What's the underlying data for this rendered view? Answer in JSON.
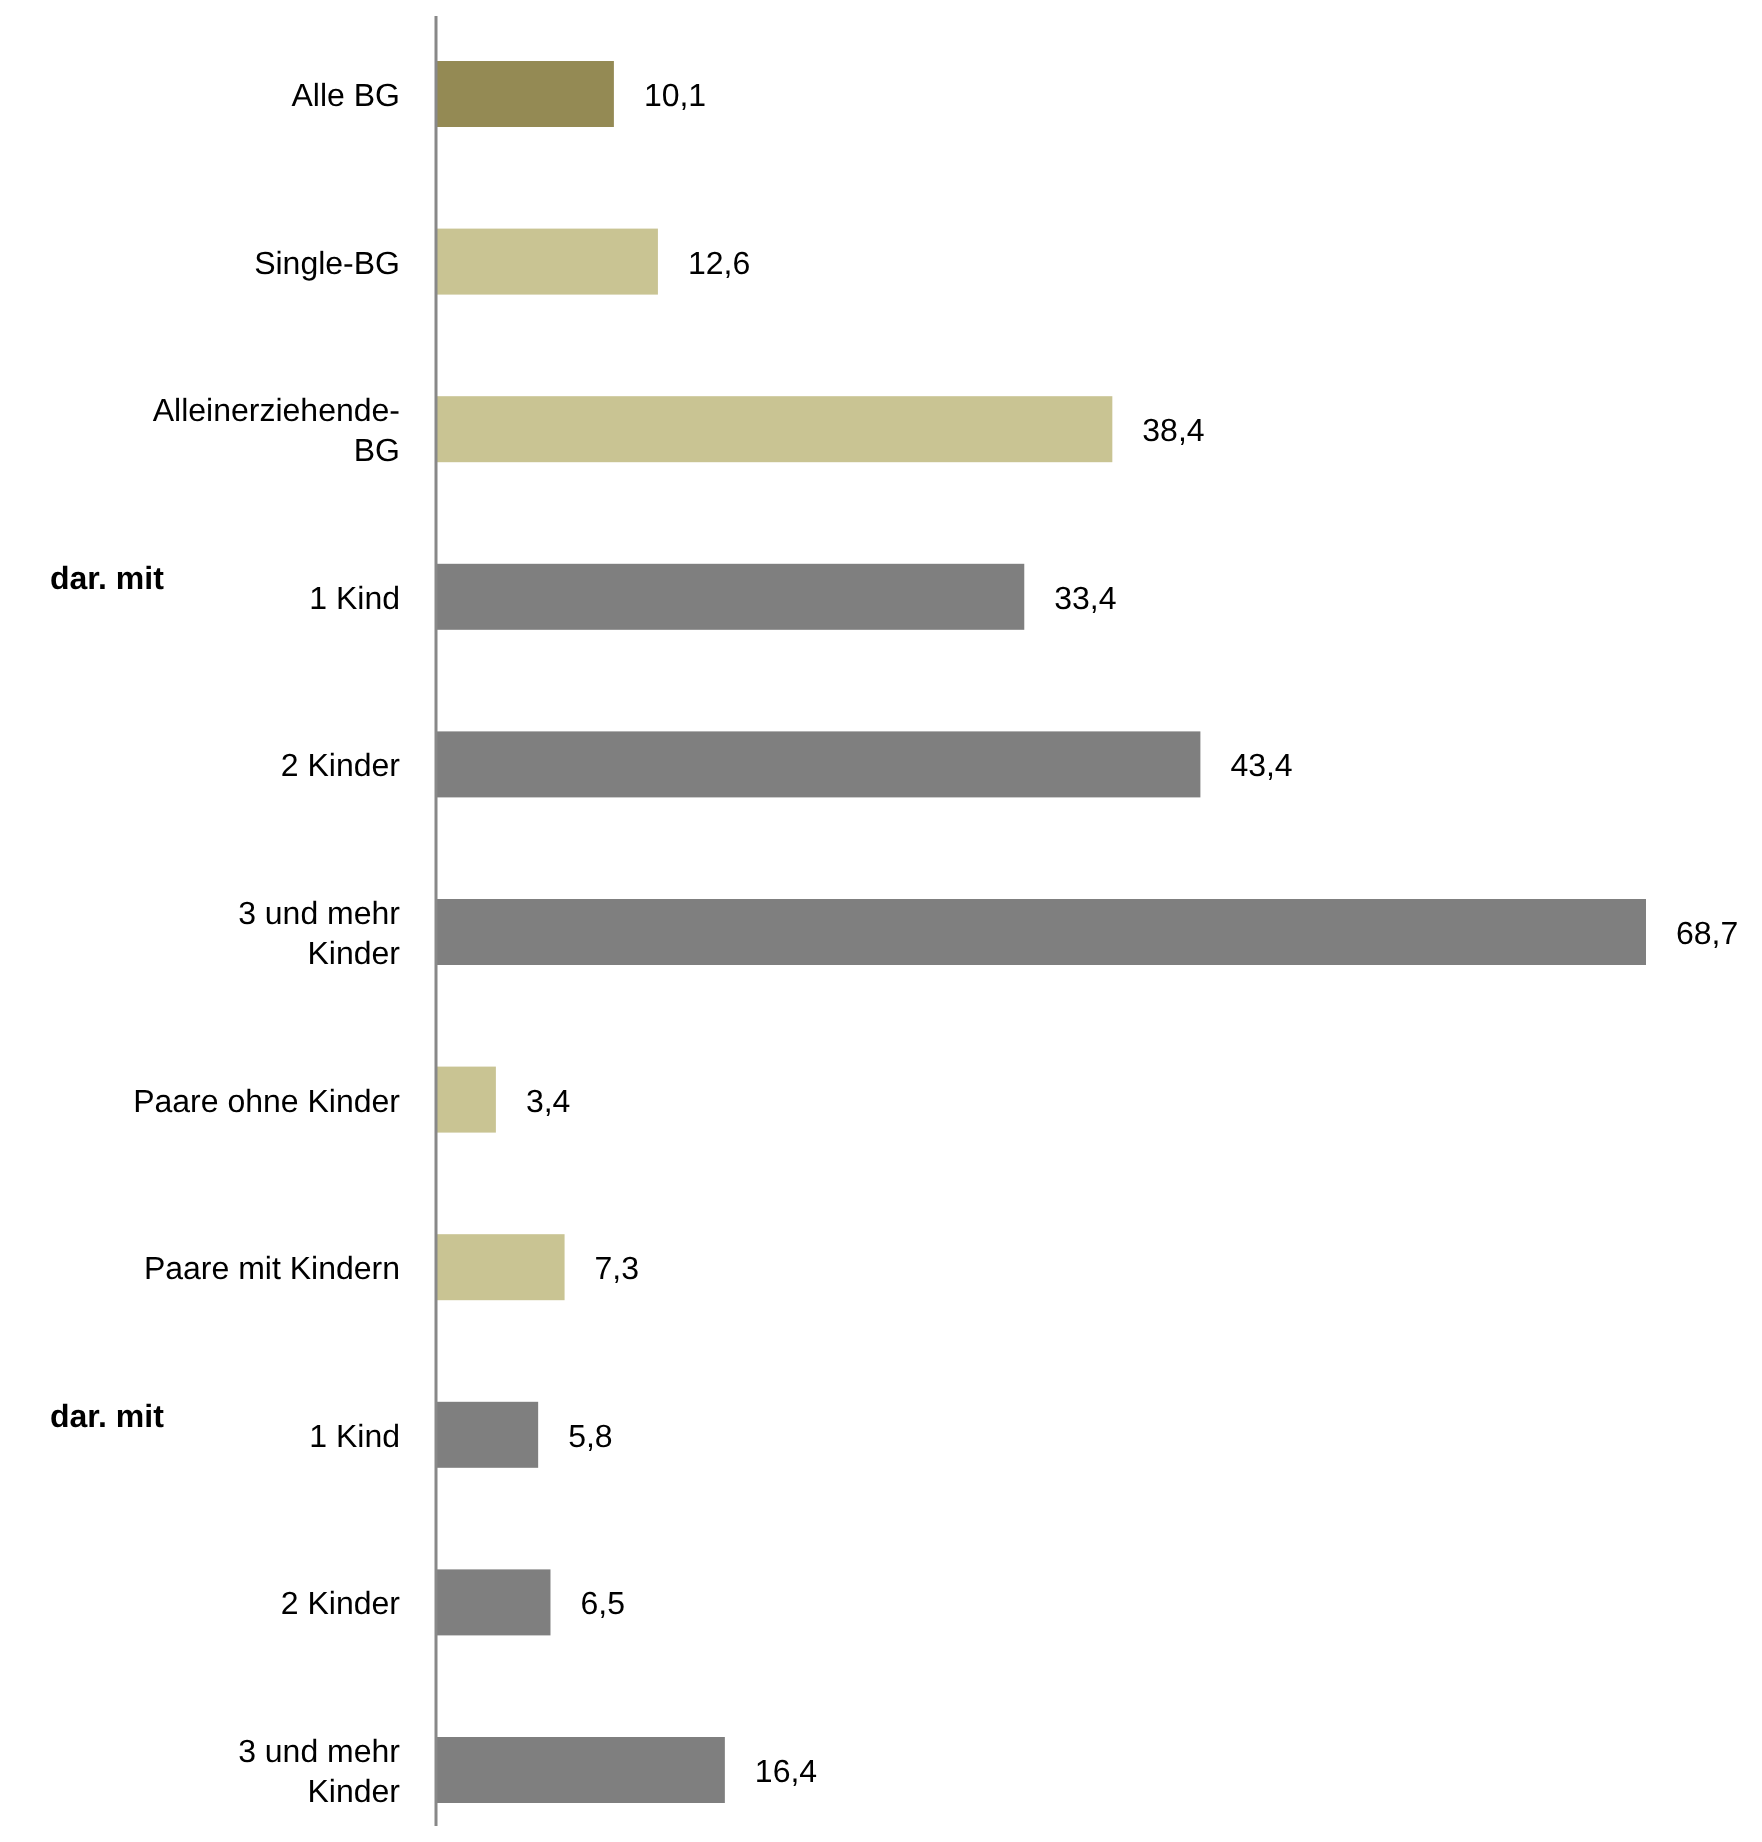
{
  "chart_data": {
    "type": "bar",
    "orientation": "horizontal",
    "categories": [
      "Alle BG",
      "Single-BG",
      "Alleinerziehende-\nBG",
      "1 Kind",
      "2 Kinder",
      "3 und mehr\nKinder",
      "Paare ohne Kinder",
      "Paare mit Kindern",
      "1 Kind",
      "2 Kinder",
      "3 und mehr\nKinder"
    ],
    "values": [
      10.1,
      12.6,
      38.4,
      33.4,
      43.4,
      68.7,
      3.4,
      7.3,
      5.8,
      6.5,
      16.4
    ],
    "value_labels": [
      "10,1",
      "12,6",
      "38,4",
      "33,4",
      "43,4",
      "68,7",
      "3,4",
      "7,3",
      "5,8",
      "6,5",
      "16,4"
    ],
    "colors": [
      "#948a54",
      "#c9c493",
      "#c9c493",
      "#7f7f7f",
      "#7f7f7f",
      "#7f7f7f",
      "#c9c493",
      "#c9c493",
      "#7f7f7f",
      "#7f7f7f",
      "#7f7f7f"
    ],
    "annotations": [
      "dar. mit",
      "dar. mit"
    ]
  }
}
